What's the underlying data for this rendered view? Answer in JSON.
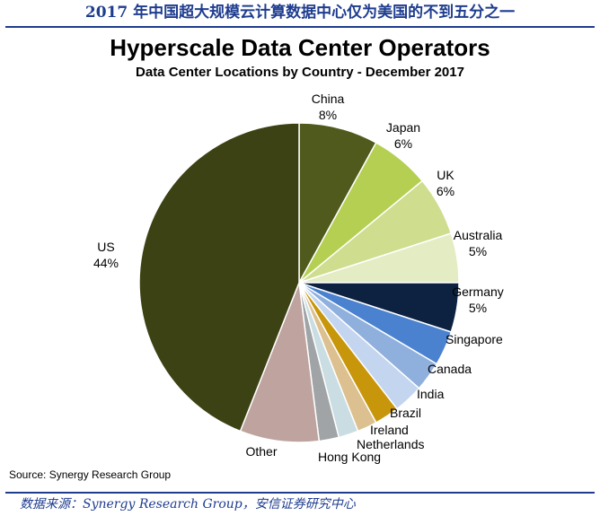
{
  "header": {
    "title": "2017 年中国超大规模云计算数据中心仅为美国的不到五分之一"
  },
  "chart_data": {
    "type": "pie",
    "title": "Hyperscale Data Center Operators",
    "subtitle": "Data Center Locations by Country - December 2017",
    "source": "Source: Synergy Research Group",
    "slices": [
      {
        "label": "China",
        "value_label": "8%",
        "value": 8,
        "color": "#4f5a1c"
      },
      {
        "label": "Japan",
        "value_label": "6%",
        "value": 6,
        "color": "#b5cf52"
      },
      {
        "label": "UK",
        "value_label": "6%",
        "value": 6,
        "color": "#cfdd8e"
      },
      {
        "label": "Australia",
        "value_label": "5%",
        "value": 5,
        "color": "#e4ecc3"
      },
      {
        "label": "Germany",
        "value_label": "5%",
        "value": 5,
        "color": "#0d2240"
      },
      {
        "label": "Singapore",
        "value_label": "",
        "value": 3.5,
        "color": "#4a82cf"
      },
      {
        "label": "Canada",
        "value_label": "",
        "value": 3,
        "color": "#8fb0dd"
      },
      {
        "label": "India",
        "value_label": "",
        "value": 3,
        "color": "#c3d5ef"
      },
      {
        "label": "Brazil",
        "value_label": "",
        "value": 2.5,
        "color": "#c8960a"
      },
      {
        "label": "Ireland",
        "value_label": "",
        "value": 2,
        "color": "#dcc08f"
      },
      {
        "label": "Netherlands",
        "value_label": "",
        "value": 2,
        "color": "#c9dde3"
      },
      {
        "label": "Hong Kong",
        "value_label": "",
        "value": 2,
        "color": "#a0a4a6"
      },
      {
        "label": "Other",
        "value_label": "",
        "value": 8,
        "color": "#bfa39f"
      },
      {
        "label": "US",
        "value_label": "44%",
        "value": 44,
        "color": "#3d4214"
      }
    ]
  },
  "footer": {
    "source": "数据来源：Synergy Research Group，安信证券研究中心"
  }
}
